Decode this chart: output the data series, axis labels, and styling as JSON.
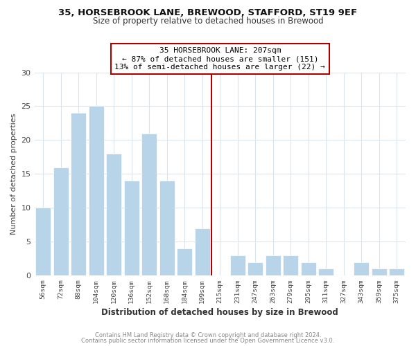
{
  "title_line1": "35, HORSEBROOK LANE, BREWOOD, STAFFORD, ST19 9EF",
  "title_line2": "Size of property relative to detached houses in Brewood",
  "xlabel": "Distribution of detached houses by size in Brewood",
  "ylabel": "Number of detached properties",
  "bar_labels": [
    "56sqm",
    "72sqm",
    "88sqm",
    "104sqm",
    "120sqm",
    "136sqm",
    "152sqm",
    "168sqm",
    "184sqm",
    "199sqm",
    "215sqm",
    "231sqm",
    "247sqm",
    "263sqm",
    "279sqm",
    "295sqm",
    "311sqm",
    "327sqm",
    "343sqm",
    "359sqm",
    "375sqm"
  ],
  "bar_values": [
    10,
    16,
    24,
    25,
    18,
    14,
    21,
    14,
    4,
    7,
    0,
    3,
    2,
    3,
    3,
    2,
    1,
    0,
    2,
    1,
    1
  ],
  "bar_color": "#b8d4e8",
  "bar_edge_color": "#ffffff",
  "vline_x": 9.5,
  "vline_color": "#aa0000",
  "annotation_title": "35 HORSEBROOK LANE: 207sqm",
  "annotation_line1": "← 87% of detached houses are smaller (151)",
  "annotation_line2": "13% of semi-detached houses are larger (22) →",
  "annotation_box_facecolor": "#ffffff",
  "annotation_box_edgecolor": "#aa0000",
  "ylim": [
    0,
    30
  ],
  "yticks": [
    0,
    5,
    10,
    15,
    20,
    25,
    30
  ],
  "footer_line1": "Contains HM Land Registry data © Crown copyright and database right 2024.",
  "footer_line2": "Contains public sector information licensed under the Open Government Licence v3.0.",
  "fig_bg_color": "#ffffff",
  "plot_bg_color": "#ffffff",
  "grid_color": "#d8e4ee"
}
